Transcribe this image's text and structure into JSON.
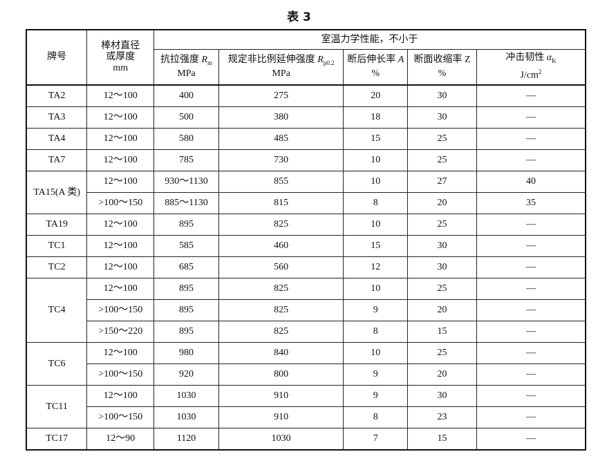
{
  "title": "表 3",
  "header": {
    "grade": "牌号",
    "size": [
      "棒材直径",
      "或厚度",
      "mm"
    ],
    "group": "室温力学性能，不小于",
    "cols": [
      {
        "label": "抗拉强度 ",
        "sym": "R",
        "sub": "m",
        "unit": "MPa"
      },
      {
        "label": "规定非比例延伸强度 ",
        "sym": "R",
        "sub": "p0.2",
        "unit": "MPa"
      },
      {
        "label": "断后伸长率 ",
        "sym": "A",
        "sub": "",
        "unit": "%"
      },
      {
        "label": "断面收缩率 Z",
        "sym": "",
        "sub": "",
        "unit": "%"
      },
      {
        "label": "冲击韧性 ",
        "sym": "α",
        "sub": "K",
        "unit": "J/cm",
        "unit_sup": "2"
      }
    ]
  },
  "groups": [
    {
      "grade": "TA2",
      "rows": [
        [
          "12～100",
          "400",
          "275",
          "20",
          "30",
          "—"
        ]
      ]
    },
    {
      "grade": "TA3",
      "rows": [
        [
          "12～100",
          "500",
          "380",
          "18",
          "30",
          "—"
        ]
      ]
    },
    {
      "grade": "TA4",
      "rows": [
        [
          "12～100",
          "580",
          "485",
          "15",
          "25",
          "—"
        ]
      ]
    },
    {
      "grade": "TA7",
      "rows": [
        [
          "12～100",
          "785",
          "730",
          "10",
          "25",
          "—"
        ]
      ]
    },
    {
      "grade": "TA15(A 类)",
      "rows": [
        [
          "12～100",
          "930～1130",
          "855",
          "10",
          "27",
          "40"
        ],
        [
          ">100～150",
          "885～1130",
          "815",
          "8",
          "20",
          "35"
        ]
      ]
    },
    {
      "grade": "TA19",
      "rows": [
        [
          "12～100",
          "895",
          "825",
          "10",
          "25",
          "—"
        ]
      ]
    },
    {
      "grade": "TC1",
      "rows": [
        [
          "12～100",
          "585",
          "460",
          "15",
          "30",
          "—"
        ]
      ]
    },
    {
      "grade": "TC2",
      "rows": [
        [
          "12～100",
          "685",
          "560",
          "12",
          "30",
          "—"
        ]
      ]
    },
    {
      "grade": "TC4",
      "rows": [
        [
          "12～100",
          "895",
          "825",
          "10",
          "25",
          "—"
        ],
        [
          ">100～150",
          "895",
          "825",
          "9",
          "20",
          "—"
        ],
        [
          ">150～220",
          "895",
          "825",
          "8",
          "15",
          "—"
        ]
      ]
    },
    {
      "grade": "TC6",
      "rows": [
        [
          "12～100",
          "980",
          "840",
          "10",
          "25",
          "—"
        ],
        [
          ">100～150",
          "920",
          "800",
          "9",
          "20",
          "—"
        ]
      ]
    },
    {
      "grade": "TC11",
      "rows": [
        [
          "12～100",
          "1030",
          "910",
          "9",
          "30",
          "—"
        ],
        [
          ">100～150",
          "1030",
          "910",
          "8",
          "23",
          "—"
        ]
      ]
    },
    {
      "grade": "TC17",
      "rows": [
        [
          "12～90",
          "1120",
          "1030",
          "7",
          "15",
          "—"
        ]
      ]
    }
  ]
}
